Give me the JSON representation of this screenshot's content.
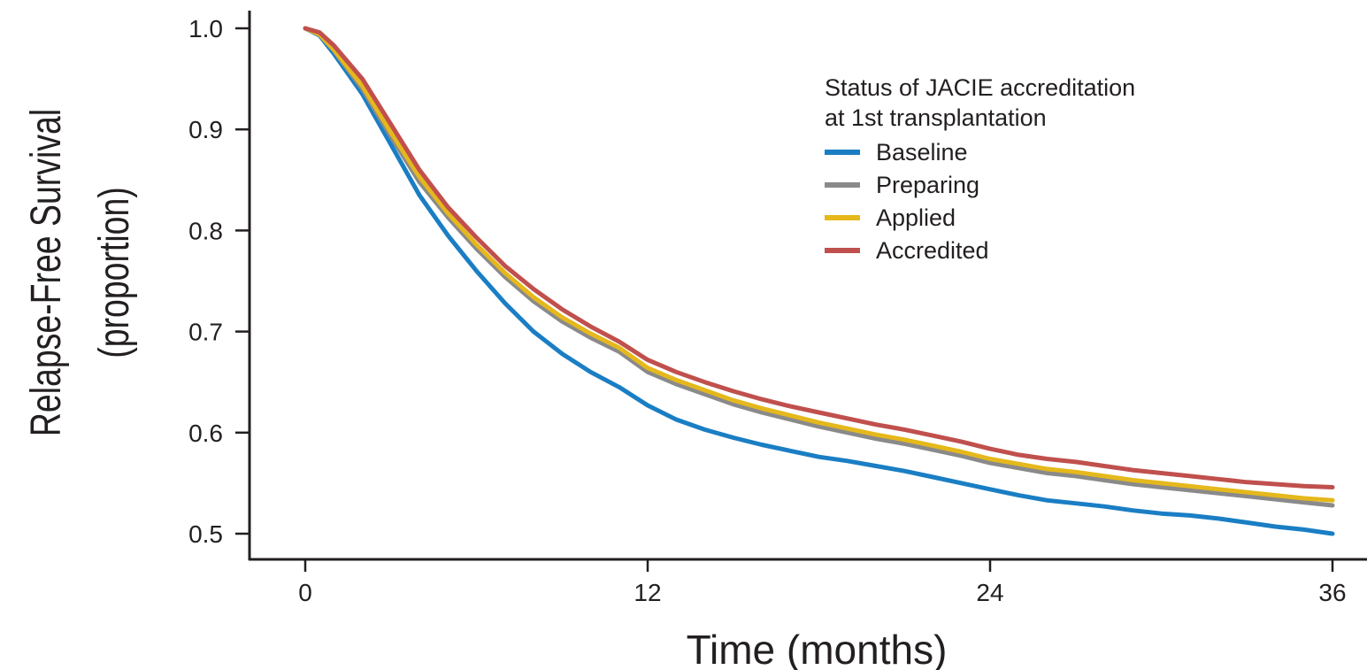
{
  "chart_data": {
    "type": "line",
    "title": "",
    "xlabel": "Time (months)",
    "ylabel": "Relapse-Free Survival",
    "ylabel_sub": "(proportion)",
    "xlim": [
      0,
      36
    ],
    "ylim": [
      0.5,
      1.0
    ],
    "x_ticks": [
      0,
      12,
      24,
      36
    ],
    "x_tick_labels": [
      "0",
      "12",
      "24",
      "36"
    ],
    "y_ticks": [
      1.0,
      0.9,
      0.8,
      0.7,
      0.6,
      0.5
    ],
    "y_tick_labels": [
      "1.0",
      "0.9",
      "0.8",
      "0.7",
      "0.6",
      "0.5"
    ],
    "grid": false,
    "legend": {
      "title_line1": "Status of JACIE accreditation",
      "title_line2": "at 1st transplantation",
      "placement": "top-right"
    },
    "series": [
      {
        "name": "Baseline",
        "color": "#1a7ec4",
        "points": [
          [
            0,
            1.0
          ],
          [
            0.5,
            0.993
          ],
          [
            1,
            0.975
          ],
          [
            2,
            0.935
          ],
          [
            3,
            0.885
          ],
          [
            4,
            0.835
          ],
          [
            5,
            0.795
          ],
          [
            6,
            0.76
          ],
          [
            7,
            0.728
          ],
          [
            8,
            0.7
          ],
          [
            9,
            0.678
          ],
          [
            10,
            0.66
          ],
          [
            11,
            0.645
          ],
          [
            12,
            0.627
          ],
          [
            13,
            0.613
          ],
          [
            14,
            0.603
          ],
          [
            15,
            0.595
          ],
          [
            16,
            0.588
          ],
          [
            17,
            0.582
          ],
          [
            18,
            0.576
          ],
          [
            19,
            0.572
          ],
          [
            20,
            0.567
          ],
          [
            21,
            0.562
          ],
          [
            22,
            0.556
          ],
          [
            23,
            0.55
          ],
          [
            24,
            0.544
          ],
          [
            25,
            0.538
          ],
          [
            26,
            0.533
          ],
          [
            27,
            0.53
          ],
          [
            28,
            0.527
          ],
          [
            29,
            0.523
          ],
          [
            30,
            0.52
          ],
          [
            31,
            0.518
          ],
          [
            32,
            0.515
          ],
          [
            33,
            0.511
          ],
          [
            34,
            0.507
          ],
          [
            35,
            0.504
          ],
          [
            36,
            0.5
          ]
        ]
      },
      {
        "name": "Preparing",
        "color": "#8a8a8a",
        "points": [
          [
            0,
            1.0
          ],
          [
            0.5,
            0.994
          ],
          [
            1,
            0.978
          ],
          [
            2,
            0.94
          ],
          [
            3,
            0.893
          ],
          [
            4,
            0.848
          ],
          [
            5,
            0.813
          ],
          [
            6,
            0.782
          ],
          [
            7,
            0.754
          ],
          [
            8,
            0.73
          ],
          [
            9,
            0.71
          ],
          [
            10,
            0.694
          ],
          [
            11,
            0.68
          ],
          [
            12,
            0.66
          ],
          [
            13,
            0.648
          ],
          [
            14,
            0.638
          ],
          [
            15,
            0.628
          ],
          [
            16,
            0.62
          ],
          [
            17,
            0.613
          ],
          [
            18,
            0.606
          ],
          [
            19,
            0.6
          ],
          [
            20,
            0.594
          ],
          [
            21,
            0.589
          ],
          [
            22,
            0.583
          ],
          [
            23,
            0.577
          ],
          [
            24,
            0.57
          ],
          [
            25,
            0.565
          ],
          [
            26,
            0.56
          ],
          [
            27,
            0.557
          ],
          [
            28,
            0.553
          ],
          [
            29,
            0.549
          ],
          [
            30,
            0.546
          ],
          [
            31,
            0.543
          ],
          [
            32,
            0.54
          ],
          [
            33,
            0.537
          ],
          [
            34,
            0.534
          ],
          [
            35,
            0.531
          ],
          [
            36,
            0.528
          ]
        ]
      },
      {
        "name": "Applied",
        "color": "#e5b81b",
        "points": [
          [
            0,
            1.0
          ],
          [
            0.5,
            0.994
          ],
          [
            1,
            0.979
          ],
          [
            2,
            0.943
          ],
          [
            3,
            0.897
          ],
          [
            4,
            0.853
          ],
          [
            5,
            0.817
          ],
          [
            6,
            0.786
          ],
          [
            7,
            0.758
          ],
          [
            8,
            0.734
          ],
          [
            9,
            0.714
          ],
          [
            10,
            0.698
          ],
          [
            11,
            0.684
          ],
          [
            12,
            0.664
          ],
          [
            13,
            0.652
          ],
          [
            14,
            0.642
          ],
          [
            15,
            0.632
          ],
          [
            16,
            0.624
          ],
          [
            17,
            0.617
          ],
          [
            18,
            0.61
          ],
          [
            19,
            0.604
          ],
          [
            20,
            0.598
          ],
          [
            21,
            0.593
          ],
          [
            22,
            0.587
          ],
          [
            23,
            0.581
          ],
          [
            24,
            0.574
          ],
          [
            25,
            0.569
          ],
          [
            26,
            0.564
          ],
          [
            27,
            0.561
          ],
          [
            28,
            0.557
          ],
          [
            29,
            0.553
          ],
          [
            30,
            0.55
          ],
          [
            31,
            0.547
          ],
          [
            32,
            0.544
          ],
          [
            33,
            0.541
          ],
          [
            34,
            0.538
          ],
          [
            35,
            0.535
          ],
          [
            36,
            0.533
          ]
        ]
      },
      {
        "name": "Accredited",
        "color": "#c0504d",
        "points": [
          [
            0,
            1.0
          ],
          [
            0.5,
            0.996
          ],
          [
            1,
            0.983
          ],
          [
            2,
            0.95
          ],
          [
            3,
            0.905
          ],
          [
            4,
            0.86
          ],
          [
            5,
            0.823
          ],
          [
            6,
            0.793
          ],
          [
            7,
            0.765
          ],
          [
            8,
            0.742
          ],
          [
            9,
            0.722
          ],
          [
            10,
            0.705
          ],
          [
            11,
            0.69
          ],
          [
            12,
            0.672
          ],
          [
            13,
            0.66
          ],
          [
            14,
            0.65
          ],
          [
            15,
            0.641
          ],
          [
            16,
            0.633
          ],
          [
            17,
            0.626
          ],
          [
            18,
            0.62
          ],
          [
            19,
            0.614
          ],
          [
            20,
            0.608
          ],
          [
            21,
            0.603
          ],
          [
            22,
            0.597
          ],
          [
            23,
            0.591
          ],
          [
            24,
            0.584
          ],
          [
            25,
            0.578
          ],
          [
            26,
            0.574
          ],
          [
            27,
            0.571
          ],
          [
            28,
            0.567
          ],
          [
            29,
            0.563
          ],
          [
            30,
            0.56
          ],
          [
            31,
            0.557
          ],
          [
            32,
            0.554
          ],
          [
            33,
            0.551
          ],
          [
            34,
            0.549
          ],
          [
            35,
            0.547
          ],
          [
            36,
            0.546
          ]
        ]
      }
    ]
  }
}
